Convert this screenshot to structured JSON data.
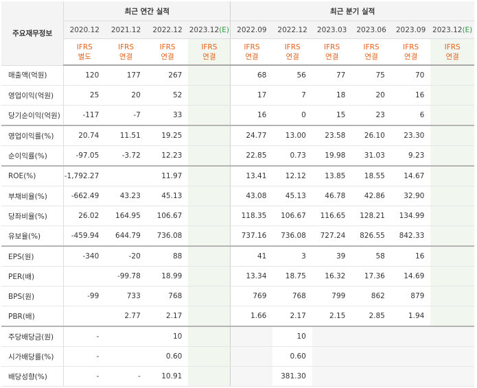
{
  "table": {
    "corner_label": "주요재무정보",
    "group_annual": "최근 연간 실적",
    "group_quarterly": "최근 분기 실적",
    "periods": [
      {
        "label": "2020.12",
        "est": "",
        "std1": "IFRS",
        "std2": "별도"
      },
      {
        "label": "2021.12",
        "est": "",
        "std1": "IFRS",
        "std2": "연결"
      },
      {
        "label": "2022.12",
        "est": "",
        "std1": "IFRS",
        "std2": "연결"
      },
      {
        "label": "2023.12",
        "est": "(E)",
        "std1": "IFRS",
        "std2": "연결"
      },
      {
        "label": "2022.09",
        "est": "",
        "std1": "IFRS",
        "std2": "연결"
      },
      {
        "label": "2022.12",
        "est": "",
        "std1": "IFRS",
        "std2": "연결"
      },
      {
        "label": "2023.03",
        "est": "",
        "std1": "IFRS",
        "std2": "연결"
      },
      {
        "label": "2023.06",
        "est": "",
        "std1": "IFRS",
        "std2": "연결"
      },
      {
        "label": "2023.09",
        "est": "",
        "std1": "IFRS",
        "std2": "연결"
      },
      {
        "label": "2023.12",
        "est": "(E)",
        "std1": "IFRS",
        "std2": "연결"
      }
    ],
    "rows": [
      {
        "label": "매출액(억원)",
        "values": [
          "120",
          "177",
          "267",
          "",
          "68",
          "56",
          "77",
          "75",
          "70",
          ""
        ]
      },
      {
        "label": "영업이익(억원)",
        "values": [
          "25",
          "20",
          "52",
          "",
          "17",
          "7",
          "18",
          "20",
          "16",
          ""
        ]
      },
      {
        "label": "당기순이익(억원)",
        "values": [
          "-117",
          "-7",
          "33",
          "",
          "16",
          "0",
          "15",
          "23",
          "6",
          ""
        ]
      },
      {
        "label": "영업이익률(%)",
        "values": [
          "20.74",
          "11.51",
          "19.25",
          "",
          "24.77",
          "13.00",
          "23.58",
          "26.10",
          "23.30",
          ""
        ]
      },
      {
        "label": "순이익률(%)",
        "values": [
          "-97.05",
          "-3.72",
          "12.23",
          "",
          "22.85",
          "0.73",
          "19.98",
          "31.03",
          "9.23",
          ""
        ]
      },
      {
        "label": "ROE(%)",
        "values": [
          "-1,792.27",
          "",
          "11.97",
          "",
          "13.41",
          "12.12",
          "13.85",
          "18.55",
          "14.67",
          ""
        ]
      },
      {
        "label": "부채비율(%)",
        "values": [
          "-662.49",
          "43.23",
          "45.13",
          "",
          "43.08",
          "45.13",
          "46.78",
          "42.86",
          "32.90",
          ""
        ]
      },
      {
        "label": "당좌비율(%)",
        "values": [
          "26.02",
          "164.95",
          "106.67",
          "",
          "118.35",
          "106.67",
          "116.65",
          "128.21",
          "134.99",
          ""
        ]
      },
      {
        "label": "유보율(%)",
        "values": [
          "-459.94",
          "644.79",
          "736.08",
          "",
          "737.16",
          "736.08",
          "727.24",
          "826.55",
          "842.33",
          ""
        ]
      },
      {
        "label": "EPS(원)",
        "values": [
          "-340",
          "-20",
          "88",
          "",
          "41",
          "3",
          "39",
          "58",
          "16",
          ""
        ]
      },
      {
        "label": "PER(배)",
        "values": [
          "",
          "-99.78",
          "18.99",
          "",
          "13.34",
          "18.75",
          "16.32",
          "17.36",
          "14.69",
          ""
        ]
      },
      {
        "label": "BPS(원)",
        "values": [
          "-99",
          "733",
          "768",
          "",
          "769",
          "768",
          "799",
          "862",
          "879",
          ""
        ]
      },
      {
        "label": "PBR(배)",
        "values": [
          "",
          "2.77",
          "2.17",
          "",
          "1.66",
          "2.17",
          "2.15",
          "2.85",
          "1.94",
          ""
        ]
      },
      {
        "label": "주당배당금(원)",
        "values": [
          "-",
          "",
          "10",
          "",
          "",
          "10",
          "",
          "",
          "",
          ""
        ]
      },
      {
        "label": "시가배당률(%)",
        "values": [
          "-",
          "",
          "0.60",
          "",
          "",
          "0.60",
          "",
          "",
          "",
          ""
        ]
      },
      {
        "label": "배당성향(%)",
        "values": [
          "-",
          "-",
          "10.91",
          "",
          "",
          "381.30",
          "",
          "",
          "",
          ""
        ]
      }
    ]
  }
}
